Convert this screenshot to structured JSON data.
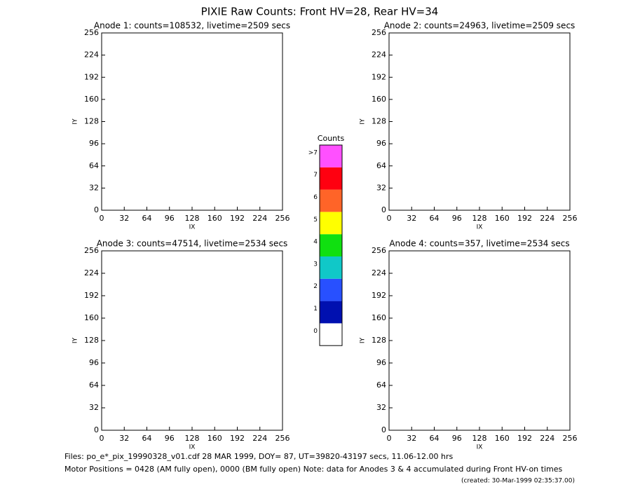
{
  "title": "PIXIE Raw Counts:  Front HV=28, Rear HV=34",
  "chart_data": [
    {
      "type": "heatmap",
      "title": "Anode 1: counts=108532, livetime=2509 secs",
      "xlabel": "IX",
      "ylabel": "IY",
      "xlim": [
        0,
        256
      ],
      "ylim": [
        0,
        256
      ],
      "xticks": [
        0,
        32,
        64,
        96,
        128,
        160,
        192,
        224,
        256
      ],
      "yticks": [
        0,
        32,
        64,
        96,
        128,
        160,
        192,
        224,
        256
      ]
    },
    {
      "type": "heatmap",
      "title": "Anode 2: counts=24963, livetime=2509 secs",
      "xlabel": "IX",
      "ylabel": "IY",
      "xlim": [
        0,
        256
      ],
      "ylim": [
        0,
        256
      ],
      "xticks": [
        0,
        32,
        64,
        96,
        128,
        160,
        192,
        224,
        256
      ],
      "yticks": [
        0,
        32,
        64,
        96,
        128,
        160,
        192,
        224,
        256
      ]
    },
    {
      "type": "heatmap",
      "title": "Anode 3: counts=47514, livetime=2534 secs",
      "xlabel": "IX",
      "ylabel": "IY",
      "xlim": [
        0,
        256
      ],
      "ylim": [
        0,
        256
      ],
      "xticks": [
        0,
        32,
        64,
        96,
        128,
        160,
        192,
        224,
        256
      ],
      "yticks": [
        0,
        32,
        64,
        96,
        128,
        160,
        192,
        224,
        256
      ]
    },
    {
      "type": "heatmap",
      "title": "Anode 4: counts=357, livetime=2534 secs",
      "xlabel": "IX",
      "ylabel": "IY",
      "xlim": [
        0,
        256
      ],
      "ylim": [
        0,
        256
      ],
      "xticks": [
        0,
        32,
        64,
        96,
        128,
        160,
        192,
        224,
        256
      ],
      "yticks": [
        0,
        32,
        64,
        96,
        128,
        160,
        192,
        224,
        256
      ]
    }
  ],
  "colorbar": {
    "title": "Counts",
    "labels": [
      "0",
      "1",
      "2",
      "3",
      "4",
      "5",
      "6",
      "7",
      ">7"
    ],
    "colors": [
      "#ffffff",
      "#0010b0",
      "#2850ff",
      "#10c8c8",
      "#10e010",
      "#ffff00",
      "#ff6428",
      "#ff0010",
      "#ff50ff"
    ]
  },
  "footer": [
    "Files: po_e*_pix_19990328_v01.cdf    28 MAR 1999, DOY= 87, UT=39820-43197 secs, 11.06-12.00 hrs",
    "Motor Positions = 0428 (AM fully open), 0000 (BM fully open)    Note: data for Anodes 3 & 4 accumulated during Front HV-on times",
    "(created: 30-Mar-1999 02:35:37.00)"
  ]
}
